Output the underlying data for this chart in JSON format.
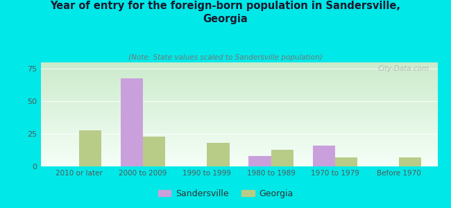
{
  "title": "Year of entry for the foreign-born population in Sandersville,\nGeorgia",
  "subtitle": "(Note: State values scaled to Sandersville population)",
  "categories": [
    "2010 or later",
    "2000 to 2009",
    "1990 to 1999",
    "1980 to 1989",
    "1970 to 1979",
    "Before 1970"
  ],
  "sandersville": [
    0,
    68,
    0,
    8,
    16,
    0
  ],
  "georgia": [
    28,
    23,
    18,
    13,
    7,
    7
  ],
  "sandersville_color": "#c9a0dc",
  "georgia_color": "#b8cc88",
  "background_color": "#00e8e8",
  "plot_bg_topleft": "#cce8cc",
  "plot_bg_topright": "#e0f0f0",
  "plot_bg_bottom": "#f0fff0",
  "ylim": [
    0,
    80
  ],
  "yticks": [
    0,
    25,
    50,
    75
  ],
  "bar_width": 0.35,
  "watermark": "City-Data.com",
  "legend_sandersville": "Sandersville",
  "legend_georgia": "Georgia",
  "title_color": "#1a1a2e",
  "subtitle_color": "#777777",
  "tick_color": "#555555"
}
